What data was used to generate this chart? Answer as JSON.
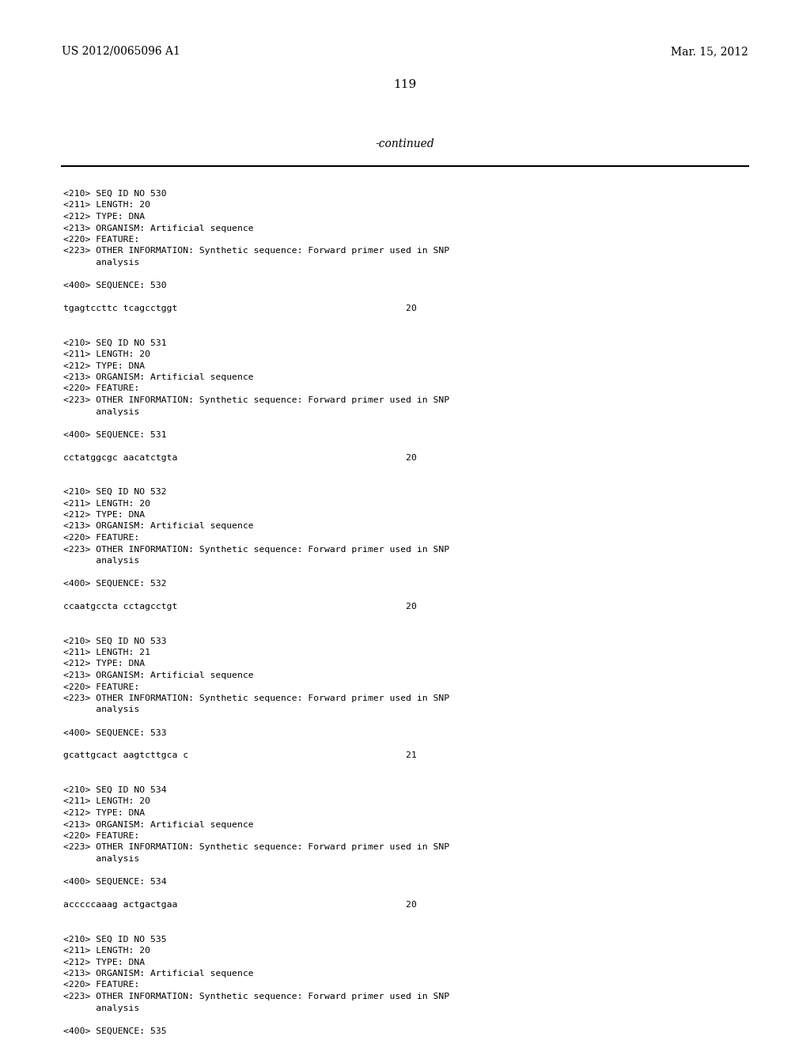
{
  "background_color": "#ffffff",
  "header_left": "US 2012/0065096 A1",
  "header_right": "Mar. 15, 2012",
  "page_number": "119",
  "continued_text": "-continued",
  "content_font_size": 8.2,
  "header_font_size": 10,
  "page_num_font_size": 11,
  "continued_font_size": 10,
  "blocks": [
    {
      "lines": [
        "<210> SEQ ID NO 530",
        "<211> LENGTH: 20",
        "<212> TYPE: DNA",
        "<213> ORGANISM: Artificial sequence",
        "<220> FEATURE:",
        "<223> OTHER INFORMATION: Synthetic sequence: Forward primer used in SNP",
        "      analysis",
        "",
        "<400> SEQUENCE: 530",
        "",
        "tgagtccttc tcagcctggt                                          20",
        ""
      ]
    },
    {
      "lines": [
        "",
        "<210> SEQ ID NO 531",
        "<211> LENGTH: 20",
        "<212> TYPE: DNA",
        "<213> ORGANISM: Artificial sequence",
        "<220> FEATURE:",
        "<223> OTHER INFORMATION: Synthetic sequence: Forward primer used in SNP",
        "      analysis",
        "",
        "<400> SEQUENCE: 531",
        "",
        "cctatggcgc aacatctgta                                          20",
        ""
      ]
    },
    {
      "lines": [
        "",
        "<210> SEQ ID NO 532",
        "<211> LENGTH: 20",
        "<212> TYPE: DNA",
        "<213> ORGANISM: Artificial sequence",
        "<220> FEATURE:",
        "<223> OTHER INFORMATION: Synthetic sequence: Forward primer used in SNP",
        "      analysis",
        "",
        "<400> SEQUENCE: 532",
        "",
        "ccaatgccta cctagcctgt                                          20",
        ""
      ]
    },
    {
      "lines": [
        "",
        "<210> SEQ ID NO 533",
        "<211> LENGTH: 21",
        "<212> TYPE: DNA",
        "<213> ORGANISM: Artificial sequence",
        "<220> FEATURE:",
        "<223> OTHER INFORMATION: Synthetic sequence: Forward primer used in SNP",
        "      analysis",
        "",
        "<400> SEQUENCE: 533",
        "",
        "gcattgcact aagtcttgca c                                        21",
        ""
      ]
    },
    {
      "lines": [
        "",
        "<210> SEQ ID NO 534",
        "<211> LENGTH: 20",
        "<212> TYPE: DNA",
        "<213> ORGANISM: Artificial sequence",
        "<220> FEATURE:",
        "<223> OTHER INFORMATION: Synthetic sequence: Forward primer used in SNP",
        "      analysis",
        "",
        "<400> SEQUENCE: 534",
        "",
        "acccccaaag actgactgaa                                          20",
        ""
      ]
    },
    {
      "lines": [
        "",
        "<210> SEQ ID NO 535",
        "<211> LENGTH: 20",
        "<212> TYPE: DNA",
        "<213> ORGANISM: Artificial sequence",
        "<220> FEATURE:",
        "<223> OTHER INFORMATION: Synthetic sequence: Forward primer used in SNP",
        "      analysis",
        "",
        "<400> SEQUENCE: 535"
      ]
    }
  ]
}
